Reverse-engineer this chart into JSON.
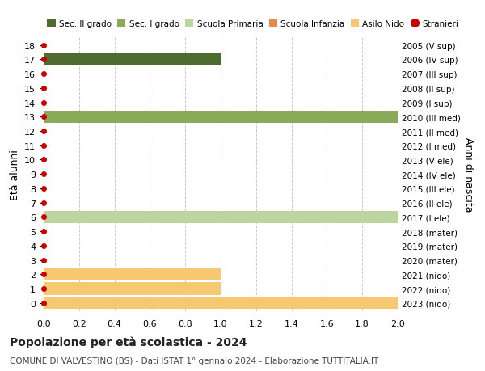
{
  "ages": [
    18,
    17,
    16,
    15,
    14,
    13,
    12,
    11,
    10,
    9,
    8,
    7,
    6,
    5,
    4,
    3,
    2,
    1,
    0
  ],
  "right_labels": [
    "2005 (V sup)",
    "2006 (IV sup)",
    "2007 (III sup)",
    "2008 (II sup)",
    "2009 (I sup)",
    "2010 (III med)",
    "2011 (II med)",
    "2012 (I med)",
    "2013 (V ele)",
    "2014 (IV ele)",
    "2015 (III ele)",
    "2016 (II ele)",
    "2017 (I ele)",
    "2018 (mater)",
    "2019 (mater)",
    "2020 (mater)",
    "2021 (nido)",
    "2022 (nido)",
    "2023 (nido)"
  ],
  "bars": [
    {
      "age": 17,
      "value": 1.0,
      "color": "#506b2e"
    },
    {
      "age": 13,
      "value": 2.0,
      "color": "#8aaa5a"
    },
    {
      "age": 6,
      "value": 2.0,
      "color": "#bcd4a0"
    },
    {
      "age": 2,
      "value": 1.0,
      "color": "#f5c871"
    },
    {
      "age": 1,
      "value": 1.0,
      "color": "#f5c871"
    },
    {
      "age": 0,
      "value": 2.0,
      "color": "#f5c871"
    }
  ],
  "dots_ages": [
    18,
    17,
    16,
    15,
    14,
    13,
    12,
    11,
    10,
    9,
    8,
    7,
    6,
    5,
    4,
    3,
    2,
    1,
    0
  ],
  "dot_color": "#cc0000",
  "colors": {
    "Sec. II grado": "#506b2e",
    "Sec. I grado": "#8aaa5a",
    "Scuola Primaria": "#bcd4a0",
    "Scuola Infanzia": "#e8874a",
    "Asilo Nido": "#f5c871",
    "Stranieri": "#cc0000"
  },
  "legend_order": [
    "Sec. II grado",
    "Sec. I grado",
    "Scuola Primaria",
    "Scuola Infanzia",
    "Asilo Nido",
    "Stranieri"
  ],
  "xlim": [
    0,
    2.0
  ],
  "xticks": [
    0,
    0.2,
    0.4,
    0.6,
    0.8,
    1.0,
    1.2,
    1.4,
    1.6,
    1.8,
    2.0
  ],
  "ylabel_left": "Età alunni",
  "ylabel_right": "Anni di nascita",
  "title": "Popolazione per età scolastica - 2024",
  "subtitle": "COMUNE DI VALVESTINO (BS) - Dati ISTAT 1° gennaio 2024 - Elaborazione TUTTITALIA.IT",
  "grid_color": "#cccccc",
  "bg_color": "#ffffff",
  "bar_height": 0.85,
  "figsize": [
    6.0,
    4.6
  ],
  "dpi": 100
}
